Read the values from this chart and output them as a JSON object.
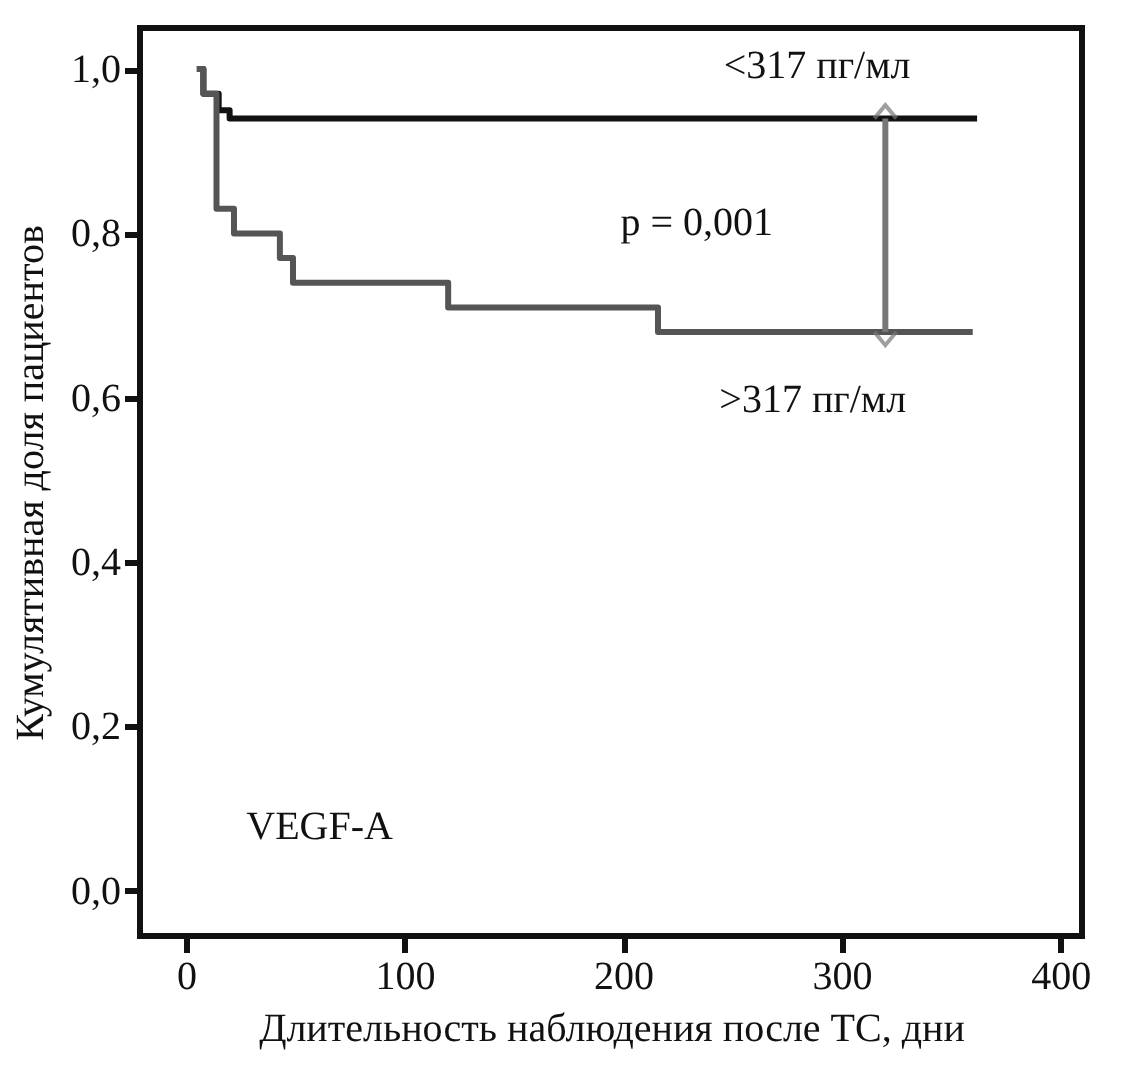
{
  "chart_data": {
    "type": "step",
    "xlabel": "Длительность наблюдения после ТС, дни",
    "ylabel": "Кумулятивная доля пациентов",
    "xlim": [
      -21,
      410
    ],
    "xticks": [
      0,
      100,
      200,
      300,
      400
    ],
    "ylim": [
      -0.055,
      1.05
    ],
    "yticks": [
      {
        "value": 0.0,
        "label": "0,0"
      },
      {
        "value": 0.2,
        "label": "0,2"
      },
      {
        "value": 0.4,
        "label": "0,4"
      },
      {
        "value": 0.6,
        "label": "0,6"
      },
      {
        "value": 0.8,
        "label": "0,8"
      },
      {
        "value": 1.0,
        "label": "1,0"
      }
    ],
    "grid": false,
    "series": [
      {
        "name": "<317 пг/мл",
        "color": "#111111",
        "x": [
          5,
          8,
          15,
          20,
          362
        ],
        "values": [
          1.0,
          0.97,
          0.95,
          0.94,
          0.94
        ]
      },
      {
        "name": ">317 пг/мл",
        "color": "#555555",
        "x": [
          5,
          8,
          14,
          22,
          43,
          49,
          120,
          216,
          360
        ],
        "values": [
          1.0,
          0.97,
          0.83,
          0.8,
          0.77,
          0.74,
          0.71,
          0.68,
          0.68
        ]
      }
    ],
    "annotations": [
      "p = 0,001",
      "VEGF-A"
    ]
  }
}
